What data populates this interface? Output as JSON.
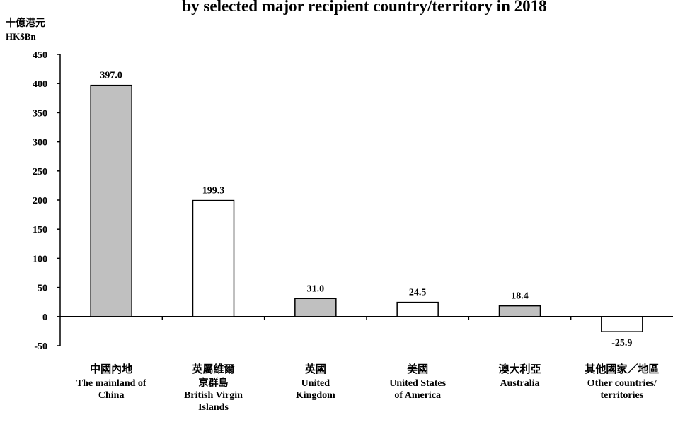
{
  "chart_data": {
    "type": "bar",
    "title": "by selected major recipient country/territory  in 2018",
    "y_label_zh": "十億港元",
    "y_label": "HK$Bn",
    "categories": [
      "中國內地\nThe mainland of\nChina",
      "英屬維爾\n京群島\nBritish Virgin\nIslands",
      "英國\nUnited\nKingdom",
      "美國\nUnited States\nof America",
      "澳大利亞\nAustralia",
      "其他國家／地區\nOther countries/\nterritories"
    ],
    "values": [
      397.0,
      199.3,
      31.0,
      24.5,
      18.4,
      -25.9
    ],
    "value_labels": [
      "397.0",
      "199.3",
      "31.0",
      "24.5",
      "18.4",
      "-25.9"
    ],
    "colors": [
      "#c0c0c0",
      "#ffffff",
      "#c0c0c0",
      "#ffffff",
      "#c0c0c0",
      "#ffffff"
    ],
    "ylim": [
      -50,
      450
    ],
    "yticks": [
      -50,
      0,
      50,
      100,
      150,
      200,
      250,
      300,
      350,
      400,
      450
    ],
    "grid": false
  }
}
